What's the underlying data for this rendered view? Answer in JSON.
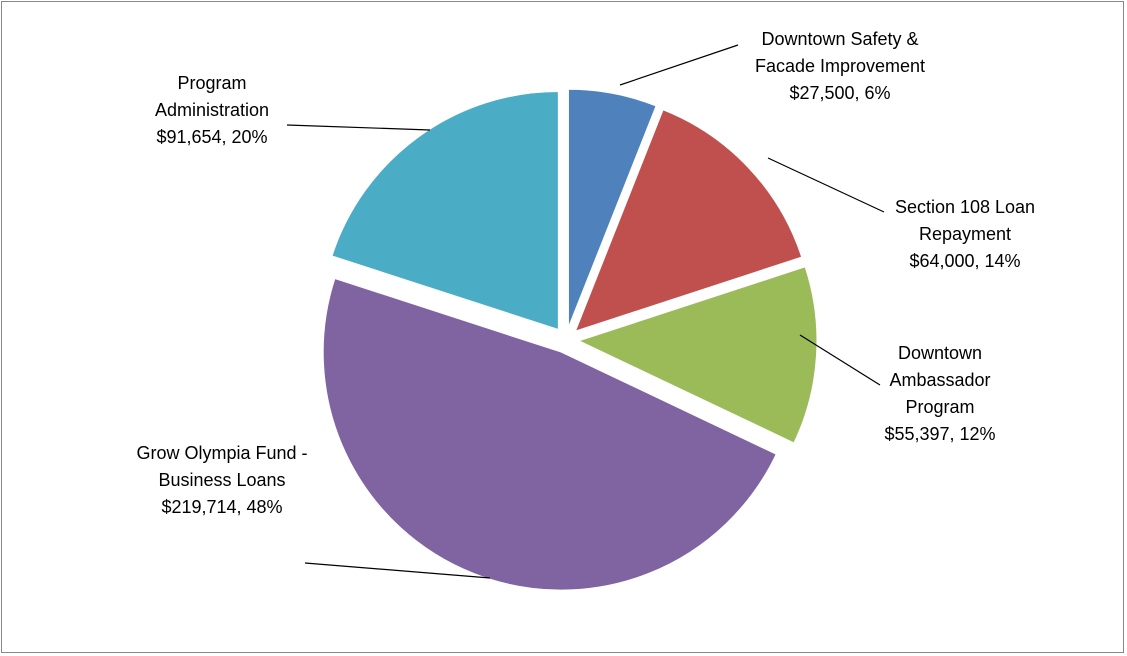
{
  "chart_data": {
    "type": "pie",
    "categories": [
      "Downtown Safety & Facade Improvement",
      "Section 108 Loan Repayment",
      "Downtown Ambassador Program",
      "Grow Olympia Fund - Business Loans",
      "Program Administration"
    ],
    "values": [
      27500,
      64000,
      55397,
      219714,
      91654
    ],
    "value_labels": [
      "$27,500, 6%",
      "$64,000, 14%",
      "$55,397, 12%",
      "$219,714, 48%",
      "$91,654, 20%"
    ],
    "colors": [
      "#4f81bd",
      "#c0504d",
      "#9bbb59",
      "#8064a2",
      "#4bacc6"
    ]
  }
}
